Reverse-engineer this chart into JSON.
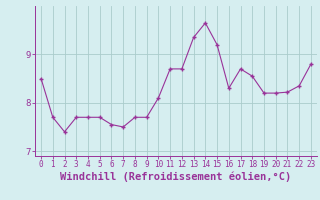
{
  "x": [
    0,
    1,
    2,
    3,
    4,
    5,
    6,
    7,
    8,
    9,
    10,
    11,
    12,
    13,
    14,
    15,
    16,
    17,
    18,
    19,
    20,
    21,
    22,
    23
  ],
  "y": [
    8.5,
    7.7,
    7.4,
    7.7,
    7.7,
    7.7,
    7.55,
    7.5,
    7.7,
    7.7,
    8.1,
    8.7,
    8.7,
    9.35,
    9.65,
    9.2,
    8.3,
    8.7,
    8.55,
    8.2,
    8.2,
    8.22,
    8.35,
    8.8
  ],
  "ylim": [
    6.9,
    10.0
  ],
  "yticks": [
    7,
    8,
    9
  ],
  "xticks": [
    0,
    1,
    2,
    3,
    4,
    5,
    6,
    7,
    8,
    9,
    10,
    11,
    12,
    13,
    14,
    15,
    16,
    17,
    18,
    19,
    20,
    21,
    22,
    23
  ],
  "xlabel": "Windchill (Refroidissement éolien,°C)",
  "line_color": "#993399",
  "marker": "+",
  "bg_color": "#d6eef0",
  "grid_color": "#aacccc",
  "axis_color": "#993399",
  "tick_color": "#993399",
  "label_color": "#993399",
  "tick_fontsize": 5.5,
  "xlabel_fontsize": 7.5
}
